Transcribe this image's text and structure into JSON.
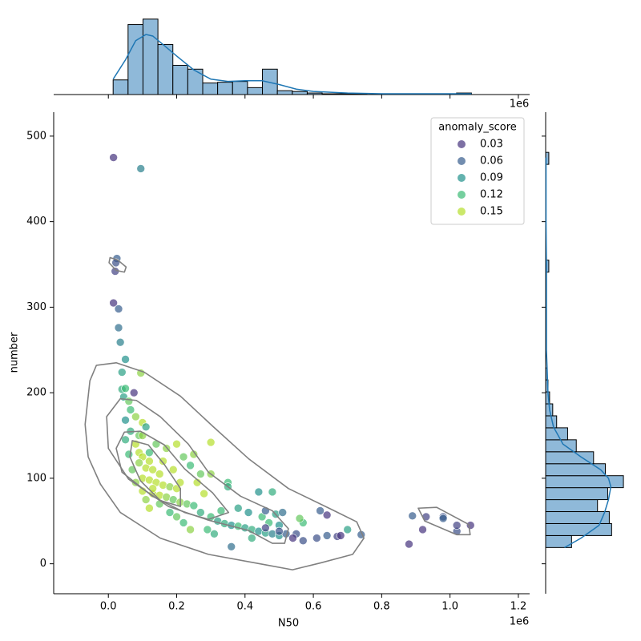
{
  "chart_data": {
    "type": "scatter",
    "x_label": "N50",
    "y_label": "number",
    "x_offset_label": "1e6",
    "xlim": [
      -0.16,
      1.233
    ],
    "ylim": [
      -35,
      528
    ],
    "xticks": [
      {
        "value": 0,
        "label": "0.0"
      },
      0.2,
      0.4,
      0.6,
      0.8,
      {
        "value": 1,
        "label": "1.0"
      },
      1.2
    ],
    "yticks": [
      0,
      100,
      200,
      300,
      400,
      500
    ],
    "legend": {
      "title": "anomaly_score",
      "corner": "upper right",
      "levels": [
        0.03,
        0.06,
        0.09,
        0.12,
        0.15
      ],
      "colors": [
        "#46337e",
        "#365c8d",
        "#21918c",
        "#3bbb75",
        "#b5de2b"
      ]
    },
    "points": {
      "x": [
        0.015,
        0.095,
        0.025,
        0.022,
        0.02,
        0.015,
        0.03,
        0.03,
        0.035,
        0.05,
        0.04,
        0.095,
        0.075,
        0.04,
        0.05,
        0.045,
        0.06,
        0.065,
        0.08,
        0.1,
        0.11,
        0.05,
        0.065,
        0.09,
        0.08,
        0.09,
        0.1,
        0.12,
        0.09,
        0.11,
        0.13,
        0.15,
        0.07,
        0.1,
        0.12,
        0.14,
        0.16,
        0.18,
        0.2,
        0.08,
        0.1,
        0.13,
        0.15,
        0.17,
        0.19,
        0.21,
        0.23,
        0.25,
        0.12,
        0.14,
        0.17,
        0.2,
        0.22,
        0.24,
        0.19,
        0.06,
        0.05,
        0.1,
        0.15,
        0.18,
        0.2,
        0.22,
        0.11,
        0.26,
        0.27,
        0.25,
        0.3,
        0.3,
        0.28,
        0.21,
        0.16,
        0.13,
        0.12,
        0.24,
        0.27,
        0.3,
        0.32,
        0.34,
        0.36,
        0.38,
        0.4,
        0.42,
        0.44,
        0.46,
        0.48,
        0.5,
        0.35,
        0.35,
        0.38,
        0.41,
        0.44,
        0.48,
        0.45,
        0.49,
        0.47,
        0.5,
        0.52,
        0.31,
        0.36,
        0.29,
        0.33,
        0.42,
        0.46,
        0.5,
        0.57,
        0.56,
        0.51,
        0.55,
        0.46,
        0.54,
        0.57,
        0.62,
        0.64,
        0.61,
        0.64,
        0.67,
        0.68,
        0.7,
        0.74,
        0.88,
        0.89,
        0.93,
        0.92,
        0.98,
        0.98,
        1.02,
        1.02,
        1.06
      ],
      "y": [
        475,
        462,
        357,
        352,
        342,
        305,
        298,
        276,
        259,
        239,
        224,
        223,
        200,
        204,
        205,
        195,
        190,
        180,
        172,
        165,
        160,
        168,
        155,
        150,
        140,
        130,
        125,
        120,
        118,
        112,
        110,
        105,
        110,
        100,
        98,
        95,
        92,
        90,
        88,
        95,
        85,
        82,
        80,
        78,
        75,
        72,
        70,
        68,
        130,
        140,
        135,
        140,
        125,
        115,
        110,
        128,
        145,
        150,
        70,
        60,
        55,
        48,
        75,
        95,
        105,
        128,
        142,
        105,
        82,
        95,
        120,
        88,
        65,
        40,
        60,
        55,
        50,
        47,
        45,
        44,
        42,
        40,
        38,
        36,
        35,
        33,
        95,
        90,
        65,
        60,
        84,
        84,
        55,
        58,
        48,
        45,
        35,
        35,
        20,
        40,
        62,
        30,
        62,
        38,
        48,
        53,
        60,
        35,
        42,
        30,
        27,
        62,
        57,
        30,
        33,
        32,
        33,
        40,
        34,
        23,
        56,
        55,
        40,
        55,
        53,
        38,
        45,
        45
      ],
      "hue": [
        0.03,
        0.08,
        0.06,
        0.05,
        0.04,
        0.03,
        0.06,
        0.07,
        0.08,
        0.09,
        0.1,
        0.14,
        0.03,
        0.11,
        0.12,
        0.1,
        0.13,
        0.12,
        0.14,
        0.15,
        0.1,
        0.09,
        0.11,
        0.13,
        0.15,
        0.16,
        0.15,
        0.16,
        0.14,
        0.17,
        0.16,
        0.15,
        0.13,
        0.16,
        0.15,
        0.16,
        0.15,
        0.14,
        0.15,
        0.14,
        0.15,
        0.16,
        0.15,
        0.14,
        0.13,
        0.14,
        0.13,
        0.12,
        0.12,
        0.13,
        0.14,
        0.15,
        0.13,
        0.12,
        0.15,
        0.12,
        0.11,
        0.14,
        0.13,
        0.12,
        0.13,
        0.12,
        0.14,
        0.15,
        0.13,
        0.14,
        0.15,
        0.14,
        0.15,
        0.16,
        0.17,
        0.17,
        0.15,
        0.14,
        0.11,
        0.12,
        0.1,
        0.11,
        0.09,
        0.12,
        0.1,
        0.11,
        0.09,
        0.1,
        0.08,
        0.09,
        0.12,
        0.11,
        0.1,
        0.09,
        0.09,
        0.11,
        0.12,
        0.1,
        0.12,
        0.09,
        0.06,
        0.11,
        0.07,
        0.12,
        0.12,
        0.11,
        0.06,
        0.05,
        0.12,
        0.13,
        0.07,
        0.05,
        0.04,
        0.03,
        0.05,
        0.06,
        0.03,
        0.05,
        0.06,
        0.04,
        0.03,
        0.1,
        0.06,
        0.03,
        0.06,
        0.04,
        0.03,
        0.05,
        0.06,
        0.05,
        0.04,
        0.02
      ]
    },
    "contours": [
      {
        "x": [
          0.023,
          -0.035,
          -0.054,
          -0.068,
          -0.059,
          -0.023,
          0.035,
          0.152,
          0.293,
          0.457,
          0.539,
          0.621,
          0.715,
          0.748,
          0.727,
          0.656,
          0.527,
          0.41,
          0.305,
          0.211,
          0.105
        ],
        "y": [
          235,
          232,
          214,
          163,
          125,
          93,
          60,
          30,
          11,
          -1,
          -7,
          1,
          11,
          30,
          49,
          63,
          88,
          123,
          161,
          196,
          224
        ]
      },
      {
        "x": [
          0.035,
          -0.005,
          0,
          0.059,
          0.176,
          0.293,
          0.41,
          0.48,
          0.516,
          0.527,
          0.48,
          0.387,
          0.293,
          0.234,
          0.152,
          0.082
        ],
        "y": [
          193,
          172,
          135,
          99,
          67,
          51,
          39,
          24,
          24,
          41,
          62,
          79,
          107,
          140,
          172,
          191
        ]
      },
      {
        "x": [
          0.047,
          0.023,
          0.04,
          0.129,
          0.223,
          0.293,
          0.352,
          0.305,
          0.223,
          0.164,
          0.094
        ],
        "y": [
          154,
          135,
          107,
          79,
          60,
          52,
          60,
          83,
          111,
          139,
          155
        ]
      },
      {
        "x": [
          0.07,
          0.063,
          0.094,
          0.152,
          0.211,
          0.211,
          0.164,
          0.117
        ],
        "y": [
          144,
          125,
          97,
          74,
          67,
          88,
          116,
          139
        ]
      },
      {
        "x": [
          0.005,
          0.028,
          0.052,
          0.047,
          0.023,
          0.002
        ],
        "y": [
          358,
          355,
          347,
          341,
          343,
          352
        ]
      },
      {
        "x": [
          0.907,
          0.961,
          1.055,
          1.059,
          1.02,
          0.926
        ],
        "y": [
          65,
          66,
          46,
          34,
          34,
          50
        ]
      }
    ],
    "contour_color": "#808080",
    "marginal_x": {
      "bins": [
        0.014,
        0.0577,
        0.1014,
        0.1451,
        0.1888,
        0.2325,
        0.2762,
        0.3199,
        0.3636,
        0.4073,
        0.451,
        0.4947,
        0.5384,
        0.5821,
        0.6258,
        0.6695,
        0.7132,
        0.7569,
        0.8006,
        0.8443,
        0.888,
        0.9317,
        0.9754,
        1.0191,
        1.0628
      ],
      "counts": [
        19,
        91,
        98,
        65,
        38,
        33,
        15,
        16,
        17,
        9,
        33,
        5,
        4,
        2,
        1,
        1,
        1,
        0,
        0,
        0,
        0,
        0,
        0,
        2
      ],
      "lim": [
        0,
        102
      ],
      "kde": {
        "x": [
          0.014,
          0.05,
          0.08,
          0.11,
          0.13,
          0.16,
          0.2,
          0.25,
          0.3,
          0.35,
          0.4,
          0.45,
          0.5,
          0.55,
          0.6,
          0.7,
          0.8,
          0.9,
          1.0,
          1.063
        ],
        "y": [
          20,
          45,
          70,
          78,
          76,
          65,
          50,
          32,
          20,
          17,
          18,
          18,
          13,
          7,
          4,
          2,
          1,
          1,
          1,
          1
        ]
      }
    },
    "marginal_y": {
      "bins": [
        19,
        33,
        47,
        61,
        75,
        89,
        103,
        117,
        131,
        145,
        159,
        173,
        187,
        201,
        215,
        229,
        243,
        257,
        271,
        285,
        299,
        313,
        327,
        341,
        355,
        369,
        383,
        397,
        411,
        425,
        439,
        453,
        467,
        481
      ],
      "counts": [
        33,
        84,
        81,
        66,
        79,
        99,
        76,
        61,
        39,
        28,
        14,
        9,
        5,
        3,
        2,
        0,
        0,
        0,
        0,
        0,
        0,
        0,
        0,
        4,
        0,
        0,
        0,
        0,
        0,
        0,
        0,
        0,
        4
      ],
      "lim": [
        0,
        102
      ],
      "kde": {
        "y": [
          19,
          30,
          45,
          60,
          75,
          90,
          100,
          110,
          125,
          140,
          160,
          180,
          200,
          250,
          300,
          350,
          400,
          475
        ],
        "x": [
          24,
          45,
          68,
          75,
          80,
          83,
          80,
          70,
          45,
          22,
          10,
          5,
          3,
          1,
          1,
          1,
          0.5,
          0.5
        ]
      }
    },
    "hist_color": "#8fb9d9",
    "kde_color": "#1f77b4"
  }
}
